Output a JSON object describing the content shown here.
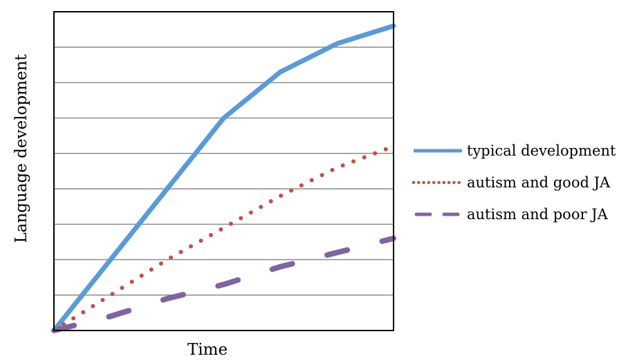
{
  "chart_data": {
    "type": "line",
    "xlabel": "Time",
    "ylabel": "Language development",
    "xlim": [
      0,
      6
    ],
    "ylim": [
      0,
      9
    ],
    "x": [
      0,
      1,
      2,
      3,
      4,
      5,
      6
    ],
    "grid": true,
    "legend_position": "right",
    "series": [
      {
        "name": "typical development",
        "values": [
          0,
          2,
          4,
          6,
          7.3,
          8.1,
          8.6
        ],
        "color": "#5b9bd5",
        "style": "solid"
      },
      {
        "name": "autism and good JA",
        "values": [
          0,
          1,
          2,
          2.9,
          3.8,
          4.6,
          5.2
        ],
        "color": "#c0504d",
        "style": "dotted"
      },
      {
        "name": "autism and poor JA",
        "values": [
          0,
          0.4,
          0.9,
          1.3,
          1.8,
          2.2,
          2.6
        ],
        "color": "#8064a2",
        "style": "dashed"
      }
    ]
  }
}
